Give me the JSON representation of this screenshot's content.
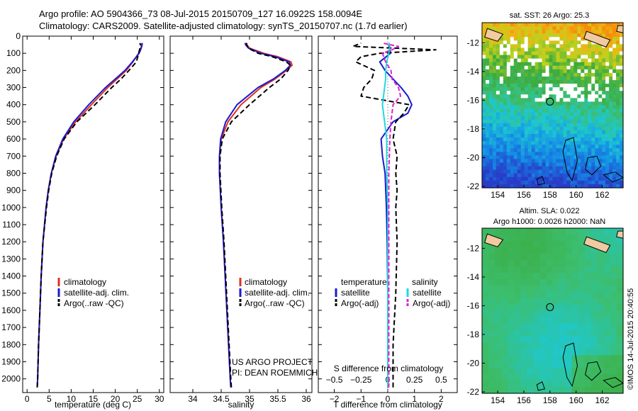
{
  "header": {
    "line1": "Argo profile: AO 5904366_73 08-Jul-2015 20150709_127 16.0922S 158.0094E",
    "line2": "Climatology: CARS2009. Satellite-adjusted climatology: synTS_20150707.nc (1.7d earlier)"
  },
  "side_stamp": "©IMOS 14-Jul-2015 20:40:55",
  "project_note": {
    "line1": "US ARGO PROJECT",
    "line2": "PI: DEAN ROEMMICH"
  },
  "colors": {
    "clim": "#e03020",
    "sat": "#1a1ad0",
    "argo": "#000000",
    "sal_sat": "#20d8e0",
    "sal_argo": "#e020d0",
    "coast": "#000000",
    "land": "#f2c9a0"
  },
  "chart_data": [
    {
      "type": "line",
      "id": "temperature",
      "xlabel": "temperature (deg C)",
      "ylabel": "",
      "xlim": [
        -1,
        31
      ],
      "ylim": [
        2080,
        0
      ],
      "x_ticks": [
        0,
        5,
        10,
        15,
        20,
        25,
        30
      ],
      "y_ticks": [
        0,
        100,
        200,
        300,
        400,
        500,
        600,
        700,
        800,
        900,
        1000,
        1100,
        1200,
        1300,
        1400,
        1500,
        1600,
        1700,
        1800,
        1900,
        2000
      ],
      "legend": [
        "climatology",
        "satellite-adj. clim.",
        "Argo(..raw -QC)"
      ],
      "series": [
        {
          "name": "climatology",
          "style": "clim",
          "depth": [
            2050,
            2000,
            1800,
            1600,
            1400,
            1200,
            1000,
            900,
            800,
            700,
            600,
            500,
            400,
            300,
            250,
            200,
            150,
            100,
            70,
            50,
            40
          ],
          "values": [
            2.3,
            2.4,
            2.6,
            2.9,
            3.2,
            3.6,
            4.3,
            4.8,
            5.5,
            6.6,
            8.3,
            11.0,
            14.6,
            18.3,
            20.4,
            22.5,
            24.0,
            25.3,
            25.8,
            26.0,
            26.0
          ]
        },
        {
          "name": "satellite-adj. clim.",
          "style": "sat",
          "depth": [
            2050,
            2000,
            1800,
            1600,
            1400,
            1200,
            1000,
            900,
            800,
            700,
            600,
            500,
            400,
            300,
            250,
            200,
            150,
            100,
            70,
            50,
            40
          ],
          "values": [
            2.3,
            2.4,
            2.6,
            2.9,
            3.2,
            3.6,
            4.3,
            4.8,
            5.5,
            6.5,
            8.1,
            10.6,
            14.0,
            17.8,
            20.0,
            22.2,
            23.9,
            25.4,
            25.9,
            26.1,
            26.1
          ]
        },
        {
          "name": "Argo(..raw -QC)",
          "style": "argo",
          "depth": [
            2050,
            2000,
            1800,
            1600,
            1400,
            1200,
            1000,
            900,
            800,
            700,
            600,
            500,
            400,
            300,
            250,
            200,
            150,
            100,
            70,
            50,
            40
          ],
          "values": [
            2.3,
            2.4,
            2.6,
            2.9,
            3.2,
            3.6,
            4.4,
            4.9,
            5.6,
            6.7,
            8.4,
            11.3,
            15.4,
            19.2,
            21.3,
            23.1,
            24.8,
            25.3,
            25.6,
            25.7,
            25.6
          ]
        }
      ]
    },
    {
      "type": "line",
      "id": "salinity",
      "xlabel": "salinity",
      "ylabel": "",
      "xlim": [
        33.6,
        36.1
      ],
      "ylim": [
        2080,
        0
      ],
      "x_ticks": [
        34,
        34.5,
        35,
        35.5,
        36
      ],
      "x_tick_labels": [
        "34",
        "34.5",
        "35",
        "35.5",
        "36"
      ],
      "legend": [
        "climatology",
        "satellite-adj. clim.",
        "Argo(..raw -QC)"
      ],
      "series": [
        {
          "name": "climatology",
          "style": "clim",
          "depth": [
            2050,
            2000,
            1800,
            1600,
            1400,
            1200,
            1000,
            800,
            700,
            600,
            500,
            400,
            300,
            250,
            200,
            170,
            150,
            120,
            100,
            70,
            50,
            40
          ],
          "values": [
            34.67,
            34.66,
            34.63,
            34.6,
            34.57,
            34.54,
            34.5,
            34.47,
            34.47,
            34.5,
            34.62,
            34.85,
            35.2,
            35.45,
            35.65,
            35.75,
            35.73,
            35.5,
            35.25,
            35.0,
            34.95,
            34.93
          ]
        },
        {
          "name": "satellite-adj. clim.",
          "style": "sat",
          "depth": [
            2050,
            2000,
            1800,
            1600,
            1400,
            1200,
            1000,
            800,
            700,
            600,
            500,
            400,
            300,
            250,
            200,
            170,
            150,
            120,
            100,
            70,
            50,
            40
          ],
          "values": [
            34.67,
            34.66,
            34.63,
            34.6,
            34.57,
            34.54,
            34.5,
            34.47,
            34.47,
            34.49,
            34.58,
            34.78,
            35.15,
            35.42,
            35.63,
            35.72,
            35.7,
            35.45,
            35.2,
            34.98,
            34.93,
            34.92
          ]
        },
        {
          "name": "Argo(..raw -QC)",
          "style": "argo",
          "depth": [
            2050,
            2000,
            1800,
            1600,
            1400,
            1200,
            1000,
            800,
            700,
            600,
            500,
            400,
            300,
            250,
            200,
            170,
            150,
            120,
            100,
            70,
            50,
            40
          ],
          "values": [
            34.68,
            34.67,
            34.64,
            34.61,
            34.58,
            34.55,
            34.51,
            34.48,
            34.48,
            34.52,
            34.68,
            35.0,
            35.35,
            35.55,
            35.68,
            35.72,
            35.65,
            35.4,
            35.15,
            34.98,
            34.95,
            34.95
          ]
        }
      ]
    },
    {
      "type": "line",
      "id": "difference",
      "xlabel": "T difference from climatology",
      "xlabel_top": "S difference from climatology",
      "xlim": [
        -2.6,
        2.6
      ],
      "ylim": [
        2080,
        0
      ],
      "x_ticks": [
        -2,
        -1,
        0,
        1,
        2
      ],
      "x_tick_labels": [
        "−2",
        "−1",
        "0",
        "1",
        "2"
      ],
      "s_ticks": [
        -0.5,
        -0.25,
        0,
        0.25,
        0.5
      ],
      "s_tick_labels": [
        "−0.5",
        "−0.25",
        "0",
        "0.25",
        "0.5"
      ],
      "s_scale": 4,
      "legend_title_t": "temperature",
      "legend_title_s": "salinity",
      "legend_t": [
        "satellite",
        "Argo(-adj)"
      ],
      "legend_s": [
        "satellite",
        "Argo(-adj)"
      ],
      "series": [
        {
          "name": "T satellite",
          "style": "sat",
          "depth": [
            2050,
            1500,
            1200,
            1000,
            800,
            700,
            600,
            500,
            450,
            400,
            350,
            300,
            250,
            200,
            150,
            100,
            60,
            40
          ],
          "values": [
            0,
            0,
            -0.02,
            -0.05,
            -0.1,
            -0.2,
            -0.25,
            0.2,
            0.75,
            0.9,
            0.75,
            0.5,
            0.2,
            -0.1,
            -0.3,
            0.1,
            0.05,
            0.05
          ]
        },
        {
          "name": "T Argo(-adj)",
          "style": "argo",
          "depth": [
            2050,
            1800,
            1500,
            1200,
            1000,
            900,
            800,
            700,
            600,
            500,
            450,
            400,
            350,
            300,
            250,
            200,
            150,
            120,
            100,
            80,
            60,
            40
          ],
          "values": [
            0.2,
            0.2,
            0.3,
            0.35,
            0.3,
            0.35,
            0.3,
            0.35,
            0.2,
            0.3,
            0.6,
            0.8,
            -1.0,
            -0.9,
            -0.6,
            -0.5,
            -1.2,
            -1.0,
            -0.3,
            1.8,
            -1.3,
            -1.0
          ]
        },
        {
          "name": "S satellite",
          "style": "sal_sat",
          "depth": [
            2050,
            1500,
            1000,
            800,
            700,
            600,
            500,
            400,
            300,
            250,
            200,
            150,
            100,
            60,
            40
          ],
          "values": [
            0,
            0,
            0,
            -0.01,
            -0.01,
            -0.01,
            -0.03,
            -0.05,
            -0.03,
            -0.02,
            -0.02,
            -0.01,
            0.01,
            0.02,
            0.01
          ]
        },
        {
          "name": "S Argo(-adj)",
          "style": "sal_argo",
          "depth": [
            2050,
            1500,
            1000,
            800,
            600,
            500,
            400,
            350,
            300,
            250,
            200,
            150,
            100,
            80,
            60,
            40
          ],
          "values": [
            0.01,
            0.01,
            0.01,
            0.01,
            0.02,
            0.03,
            0.05,
            0.12,
            0.1,
            0.04,
            0.03,
            -0.02,
            -0.05,
            0.04,
            0.1,
            -0.05
          ]
        }
      ]
    },
    {
      "type": "heatmap",
      "id": "sst_map",
      "title": "sat. SST: 26 Argo: 25.3",
      "xlim": [
        152.8,
        163.6
      ],
      "ylim": [
        -22.1,
        -10.6
      ],
      "x_ticks": [
        154,
        156,
        158,
        160,
        162
      ],
      "y_ticks": [
        -12,
        -14,
        -16,
        -18,
        -20,
        -22
      ],
      "marker": {
        "lon": 158.0,
        "lat": -16.1
      }
    },
    {
      "type": "heatmap",
      "id": "sla_map",
      "title": "Altim. SLA: 0.022",
      "subtitle": "Argo h1000: 0.0026 h2000: NaN",
      "xlim": [
        152.8,
        163.6
      ],
      "ylim": [
        -22.1,
        -10.6
      ],
      "x_ticks": [
        154,
        156,
        158,
        160,
        162
      ],
      "y_ticks": [
        -12,
        -14,
        -16,
        -18,
        -20,
        -22
      ],
      "marker": {
        "lon": 158.0,
        "lat": -16.1
      }
    }
  ]
}
